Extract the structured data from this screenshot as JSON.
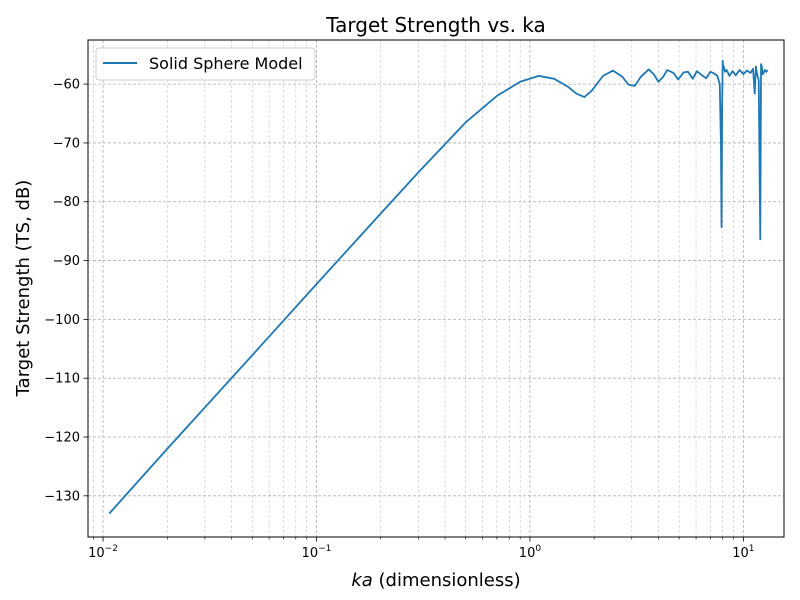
{
  "chart_data": {
    "type": "line",
    "title": "Target Strength vs. ka",
    "xlabel_italic": "ka",
    "xlabel_rest": " (dimensionless)",
    "ylabel": "Target Strength (TS, dB)",
    "xscale": "log",
    "xlim": [
      0.0085,
      15.5
    ],
    "ylim": [
      -137,
      -52.5
    ],
    "grid": true,
    "legend_position": "top-left",
    "x_ticks": [
      {
        "value": 0.01,
        "base": "10",
        "exp": "−2"
      },
      {
        "value": 0.1,
        "base": "10",
        "exp": "−1"
      },
      {
        "value": 1,
        "base": "10",
        "exp": "0"
      },
      {
        "value": 10,
        "base": "10",
        "exp": "1"
      }
    ],
    "y_ticks": [
      {
        "value": -60,
        "label": "−60"
      },
      {
        "value": -70,
        "label": "−70"
      },
      {
        "value": -80,
        "label": "−80"
      },
      {
        "value": -90,
        "label": "−90"
      },
      {
        "value": -100,
        "label": "−100"
      },
      {
        "value": -110,
        "label": "−110"
      },
      {
        "value": -120,
        "label": "−120"
      },
      {
        "value": -130,
        "label": "−130"
      }
    ],
    "series": [
      {
        "name": "Solid Sphere Model",
        "color": "#1f77b4",
        "x": [
          0.0107,
          0.02,
          0.05,
          0.1,
          0.2,
          0.3,
          0.5,
          0.7,
          0.9,
          1.1,
          1.3,
          1.5,
          1.65,
          1.8,
          1.95,
          2.2,
          2.45,
          2.7,
          2.9,
          3.1,
          3.3,
          3.6,
          3.8,
          4.0,
          4.2,
          4.4,
          4.7,
          4.95,
          5.25,
          5.5,
          5.8,
          6.05,
          6.4,
          6.7,
          7.0,
          7.3,
          7.55,
          7.75,
          7.85,
          7.9,
          7.95,
          8.0,
          8.05,
          8.1,
          8.2,
          8.35,
          8.6,
          8.9,
          9.2,
          9.6,
          10.0,
          10.4,
          10.8,
          11.1,
          11.3,
          11.45,
          11.55,
          11.65,
          11.8,
          12.0,
          12.1,
          12.2,
          12.3,
          12.4,
          12.6,
          12.8,
          13.0
        ],
        "y": [
          -133.0,
          -122.0,
          -106.1,
          -94.0,
          -82.0,
          -75.0,
          -66.5,
          -62.0,
          -59.6,
          -58.6,
          -59.1,
          -60.4,
          -61.6,
          -62.2,
          -61.1,
          -58.6,
          -57.7,
          -58.7,
          -60.1,
          -60.3,
          -58.8,
          -57.5,
          -58.3,
          -59.6,
          -58.8,
          -57.6,
          -58.1,
          -59.2,
          -58.0,
          -57.9,
          -59.1,
          -57.8,
          -58.5,
          -59.0,
          -57.9,
          -58.2,
          -58.6,
          -60.0,
          -70.0,
          -84.3,
          -64.0,
          -56.0,
          -57.5,
          -57.0,
          -57.9,
          -57.6,
          -58.6,
          -57.8,
          -58.5,
          -57.6,
          -58.3,
          -57.7,
          -58.1,
          -57.4,
          -61.6,
          -57.0,
          -58.0,
          -58.6,
          -59.3,
          -86.4,
          -56.6,
          -57.0,
          -58.3,
          -58.2,
          -57.6,
          -57.9,
          -57.6
        ]
      }
    ]
  }
}
